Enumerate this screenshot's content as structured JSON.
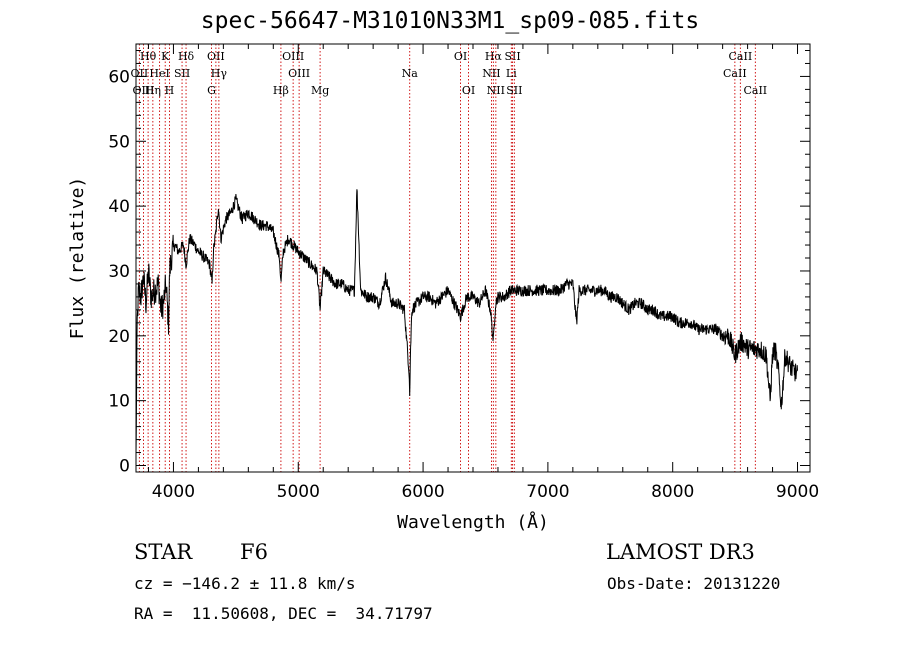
{
  "title": "spec-56647-M31010N33M1_sp09-085.fits",
  "info": {
    "class": "STAR",
    "subclass": "F6",
    "survey": "LAMOST DR3",
    "cz": "cz = −146.2 ± 11.8 km/s",
    "obsdate": "Obs-Date: 20131220",
    "radec": "RA =  11.50608, DEC =  34.71797"
  },
  "colors": {
    "line_marker": "#cc0000",
    "spectrum": "#000000",
    "axes": "#000000"
  },
  "chart_data": {
    "type": "line",
    "title": "spec-56647-M31010N33M1_sp09-085.fits",
    "xlabel": "Wavelength (Å)",
    "ylabel": "Flux (relative)",
    "xlim": [
      3700,
      9100
    ],
    "ylim": [
      -1,
      65
    ],
    "xticks": [
      4000,
      5000,
      6000,
      7000,
      8000,
      9000
    ],
    "yticks": [
      0,
      10,
      20,
      30,
      40,
      50,
      60
    ],
    "grid": false,
    "spectrum_anchors": {
      "x": [
        3700,
        3710,
        3720,
        3740,
        3760,
        3780,
        3800,
        3820,
        3850,
        3880,
        3900,
        3920,
        3940,
        3960,
        3970,
        3990,
        4010,
        4040,
        4080,
        4101,
        4130,
        4170,
        4200,
        4250,
        4290,
        4310,
        4320,
        4340,
        4360,
        4380,
        4420,
        4460,
        4500,
        4550,
        4600,
        4650,
        4700,
        4750,
        4800,
        4850,
        4861,
        4880,
        4920,
        4960,
        5000,
        5050,
        5100,
        5150,
        5175,
        5200,
        5250,
        5300,
        5350,
        5400,
        5450,
        5470,
        5500,
        5550,
        5600,
        5650,
        5700,
        5750,
        5800,
        5850,
        5890,
        5893,
        5897,
        5910,
        5950,
        6000,
        6050,
        6100,
        6150,
        6200,
        6250,
        6300,
        6350,
        6400,
        6450,
        6500,
        6540,
        6563,
        6580,
        6600,
        6650,
        6700,
        6750,
        6800,
        6850,
        6900,
        6950,
        7000,
        7050,
        7100,
        7150,
        7200,
        7230,
        7250,
        7300,
        7350,
        7400,
        7450,
        7500,
        7550,
        7600,
        7650,
        7700,
        7750,
        7800,
        7850,
        7900,
        7950,
        8000,
        8050,
        8100,
        8150,
        8200,
        8250,
        8300,
        8350,
        8400,
        8450,
        8498,
        8520,
        8542,
        8560,
        8600,
        8662,
        8700,
        8750,
        8780,
        8800,
        8820,
        8850,
        8870,
        8900,
        8950,
        9000
      ],
      "y": [
        1,
        22,
        27,
        26,
        29,
        25,
        30,
        26,
        27,
        28,
        24,
        25,
        28,
        22,
        30,
        33,
        34,
        33,
        34,
        31,
        35,
        34,
        33,
        32,
        31,
        28,
        33,
        36,
        40,
        35,
        38,
        39,
        41,
        38,
        39,
        38,
        37,
        37,
        36,
        32,
        28,
        33,
        35,
        34,
        33,
        32,
        31,
        30,
        24,
        30,
        29,
        28,
        28,
        27,
        27,
        43,
        27,
        26,
        26,
        25,
        29,
        25,
        25,
        24,
        14,
        10,
        16,
        24,
        25,
        26,
        26,
        25,
        26,
        27,
        25,
        23,
        26,
        26,
        25,
        27,
        24,
        19,
        25,
        26,
        26,
        27,
        27,
        27,
        27,
        27,
        27,
        27,
        27,
        27,
        28,
        28,
        22,
        27,
        27,
        27,
        27,
        27,
        26,
        26,
        25,
        24,
        25,
        25,
        24,
        24,
        23,
        23,
        23,
        22,
        22,
        22,
        21,
        21,
        21,
        21,
        20,
        20,
        17,
        18,
        19,
        19,
        18,
        18,
        18,
        17,
        10,
        17,
        18,
        14,
        9,
        17,
        15,
        14
      ]
    },
    "spectral_lines": [
      {
        "label": "Hθ",
        "x": 3797,
        "row": 0
      },
      {
        "label": "K",
        "x": 3934,
        "row": 0
      },
      {
        "label": "Hδ",
        "x": 4101,
        "row": 0
      },
      {
        "label": "OII",
        "x": 4340,
        "row": 0
      },
      {
        "label": "OIII",
        "x": 4959,
        "row": 0
      },
      {
        "label": "OI",
        "x": 6300,
        "row": 0
      },
      {
        "label": "Hα",
        "x": 6563,
        "row": 0
      },
      {
        "label": "SII",
        "x": 6717,
        "row": 0
      },
      {
        "label": "CaII",
        "x": 8542,
        "row": 0
      },
      {
        "label": "OII",
        "x": 3727,
        "row": 1
      },
      {
        "label": "HeI",
        "x": 3889,
        "row": 1
      },
      {
        "label": "SII",
        "x": 4069,
        "row": 1
      },
      {
        "label": "Hγ",
        "x": 4364,
        "row": 1
      },
      {
        "label": "OIII",
        "x": 5007,
        "row": 1
      },
      {
        "label": "Na",
        "x": 5893,
        "row": 1
      },
      {
        "label": "NII",
        "x": 6548,
        "row": 1
      },
      {
        "label": "Li",
        "x": 6707,
        "row": 1
      },
      {
        "label": "CaII",
        "x": 8498,
        "row": 1
      },
      {
        "label": "OIII",
        "x": 3760,
        "row": 2
      },
      {
        "label": "Hη",
        "x": 3835,
        "row": 2
      },
      {
        "label": "H",
        "x": 3968,
        "row": 2
      },
      {
        "label": "G",
        "x": 4305,
        "row": 2
      },
      {
        "label": "Hβ",
        "x": 4861,
        "row": 2
      },
      {
        "label": "Mg",
        "x": 5175,
        "row": 2
      },
      {
        "label": "OI",
        "x": 6364,
        "row": 2
      },
      {
        "label": "NII",
        "x": 6583,
        "row": 2
      },
      {
        "label": "SII",
        "x": 6731,
        "row": 2
      },
      {
        "label": "CaII",
        "x": 8662,
        "row": 2
      }
    ]
  }
}
